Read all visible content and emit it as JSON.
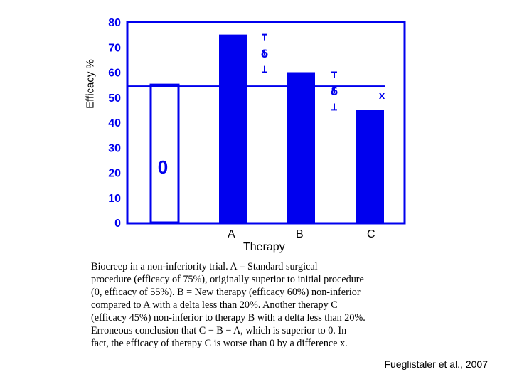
{
  "chart_data": {
    "type": "bar",
    "ylabel": "Efficacy %",
    "xlabel": "Therapy",
    "ylim": [
      0,
      80
    ],
    "yticks": [
      "0",
      "10",
      "20",
      "30",
      "40",
      "50",
      "60",
      "70",
      "80"
    ],
    "bars": [
      {
        "label": "0",
        "value": 55,
        "style": "outline"
      },
      {
        "label": "A",
        "value": 75,
        "style": "filled"
      },
      {
        "label": "B",
        "value": 60,
        "style": "filled"
      },
      {
        "label": "C",
        "value": 45,
        "style": "filled"
      }
    ],
    "categories": [
      "A",
      "B",
      "C"
    ],
    "reference_line": 55,
    "annotations": [
      {
        "symbol": "δ",
        "from": 75,
        "to": 60
      },
      {
        "symbol": "δ",
        "from": 60,
        "to": 45
      },
      {
        "symbol": "x",
        "value": 55
      }
    ],
    "grid": false,
    "colors": {
      "bar": "#0000ee",
      "axis": "#0000ee",
      "text": "#000000"
    }
  },
  "caption_lines": [
    "Biocreep in a non-inferiority trial. A = Standard surgical",
    "procedure (efficacy of 75%), originally superior to initial procedure",
    "(0, efficacy of 55%). B = New therapy (efficacy 60%) non-inferior",
    "compared to A with a delta less than 20%. Another therapy C",
    "(efficacy 45%) non-inferior to therapy B with a delta less than 20%.",
    "Erroneous conclusion that C − B − A, which is superior to 0. In",
    "fact, the efficacy of therapy C is worse than 0 by a difference x."
  ],
  "credit": "Fueglistaler et al., 2007"
}
